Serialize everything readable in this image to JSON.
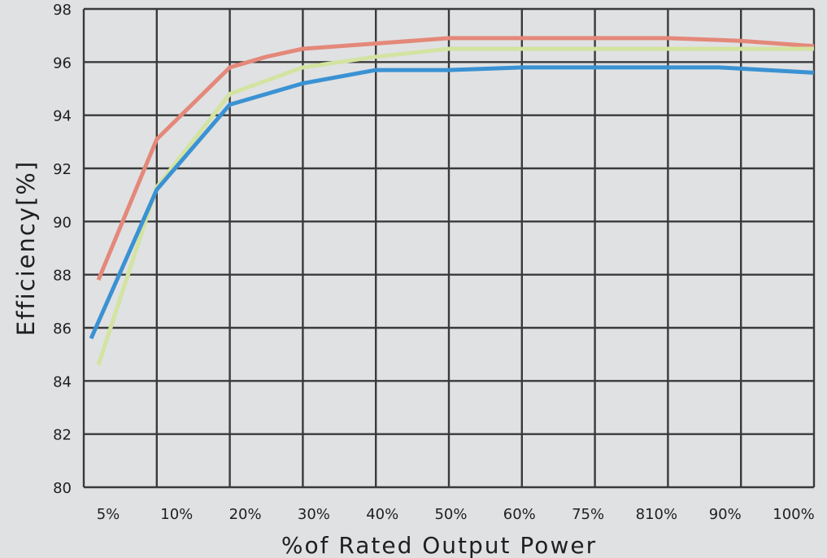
{
  "chart_data": {
    "type": "line",
    "title": "",
    "xlabel": "%of Rated Output Power",
    "ylabel": "Efficiency[%]",
    "ylim": [
      80,
      98
    ],
    "yticks": [
      "80",
      "82",
      "84",
      "86",
      "88",
      "90",
      "92",
      "94",
      "96",
      "98"
    ],
    "categories": [
      "5%",
      "10%",
      "20%",
      "30%",
      "40%",
      "50%",
      "60%",
      "75%",
      "810%",
      "90%",
      "100%"
    ],
    "grid": true,
    "legend": "none",
    "colors": {
      "background": "#e0e1e3",
      "grid": "#3a3a3a"
    },
    "series": [
      {
        "color": "#e4887a",
        "x": [
          0.2,
          1.0,
          2.0,
          2.5,
          3.0,
          4.0,
          5.0,
          6.0,
          7.0,
          8.0,
          9.0,
          10.0
        ],
        "values": [
          87.8,
          93.1,
          95.8,
          96.2,
          96.5,
          96.7,
          96.9,
          96.9,
          96.9,
          96.9,
          96.8,
          96.6
        ]
      },
      {
        "color": "#d3e3a1",
        "x": [
          0.2,
          1.0,
          2.0,
          2.5,
          3.0,
          4.0,
          5.0,
          6.0,
          7.0,
          8.0,
          9.0,
          10.0
        ],
        "values": [
          84.6,
          91.3,
          94.8,
          95.3,
          95.8,
          96.2,
          96.5,
          96.5,
          96.5,
          96.5,
          96.5,
          96.5
        ]
      },
      {
        "color": "#3a92d3",
        "x": [
          0.1,
          1.0,
          2.0,
          3.0,
          4.0,
          5.0,
          6.0,
          7.0,
          8.0,
          8.7,
          10.0
        ],
        "values": [
          85.6,
          91.2,
          94.4,
          95.2,
          95.7,
          95.7,
          95.8,
          95.8,
          95.8,
          95.8,
          95.6
        ]
      }
    ]
  }
}
